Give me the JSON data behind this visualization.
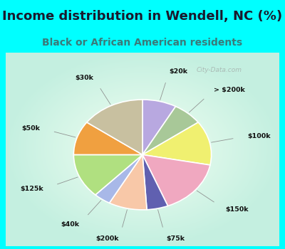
{
  "title": "Income distribution in Wendell, NC (%)",
  "subtitle": "Black or African American residents",
  "bg_cyan": "#00FFFF",
  "labels": [
    "$20k",
    "> $200k",
    "$100k",
    "$150k",
    "$75k",
    "$200k",
    "$40k",
    "$125k",
    "$50k",
    "$30k"
  ],
  "sizes": [
    8,
    7,
    13,
    16,
    5,
    9,
    4,
    13,
    10,
    15
  ],
  "colors": [
    "#b8a8e0",
    "#a8c898",
    "#f0f070",
    "#f0a8c0",
    "#6060b0",
    "#f8c8a8",
    "#a8b8e8",
    "#b0e080",
    "#f0a040",
    "#c8c0a0"
  ],
  "title_fontsize": 13,
  "subtitle_fontsize": 10,
  "watermark": "City-Data.com"
}
